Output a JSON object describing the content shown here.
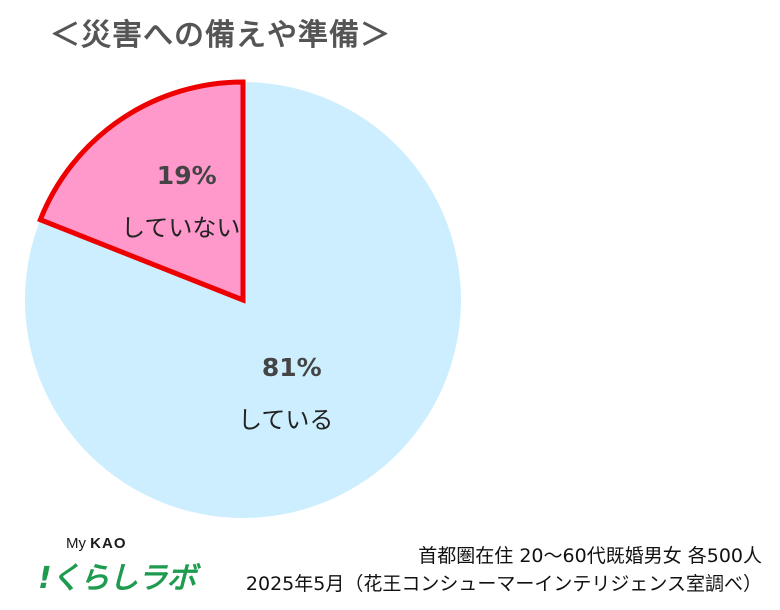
{
  "title": "＜災害への備えや準備＞",
  "chart_data": {
    "type": "pie",
    "slices": [
      {
        "label": "していない",
        "value": 19,
        "value_label": "19%",
        "color": "#ff99cc",
        "highlight": true,
        "stroke": "#ee0000"
      },
      {
        "label": "している",
        "value": 81,
        "value_label": "81%",
        "color": "#cceeff",
        "highlight": false
      }
    ]
  },
  "logo": {
    "top_text": "My",
    "top_brand": "KAO",
    "main_text": "!くらしラボ",
    "color": "#1e9b4f"
  },
  "source": {
    "line1": "首都圏在住 20～60代既婚男女 各500人",
    "line2": "2025年5月（花王コンシューマーインテリジェンス室調べ）"
  }
}
